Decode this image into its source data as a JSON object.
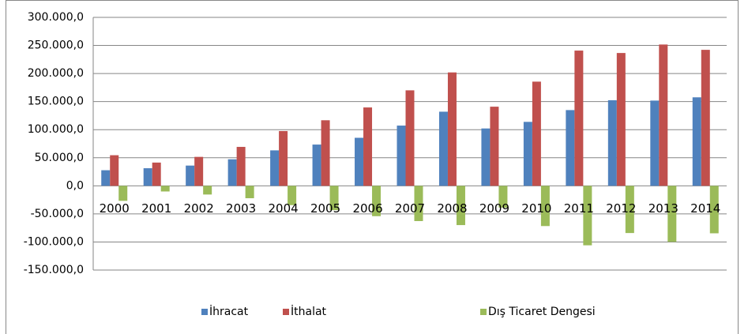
{
  "chart_data": {
    "type": "bar",
    "categories": [
      "2000",
      "2001",
      "2002",
      "2003",
      "2004",
      "2005",
      "2006",
      "2007",
      "2008",
      "2009",
      "2010",
      "2011",
      "2012",
      "2013",
      "2014"
    ],
    "series": [
      {
        "name": "İhracat",
        "color": "#4f81bd",
        "values": [
          27775,
          31334,
          36059,
          47253,
          63167,
          73476,
          85535,
          107272,
          132027,
          102143,
          113883,
          134907,
          152462,
          151803,
          157610
        ]
      },
      {
        "name": "İthalat",
        "color": "#c0504d",
        "values": [
          54503,
          41399,
          51554,
          69340,
          97540,
          116774,
          139576,
          170063,
          201964,
          140928,
          185544,
          240842,
          236545,
          251661,
          242177
        ]
      },
      {
        "name": "Dış Ticaret Dengesi",
        "color": "#9bbb59",
        "values": [
          -26728,
          -10065,
          -15495,
          -22087,
          -34373,
          -43298,
          -54041,
          -62791,
          -69936,
          -38786,
          -71661,
          -105935,
          -84083,
          -99858,
          -84567
        ]
      }
    ],
    "ylim": [
      -150000,
      300000
    ],
    "yticks": [
      {
        "value": -150000,
        "label": "-150.000,0"
      },
      {
        "value": -100000,
        "label": "-100.000,0"
      },
      {
        "value": -50000,
        "label": "-50.000,0"
      },
      {
        "value": 0,
        "label": "0,0"
      },
      {
        "value": 50000,
        "label": "50.000,0"
      },
      {
        "value": 100000,
        "label": "100.000,0"
      },
      {
        "value": 150000,
        "label": "150.000,0"
      },
      {
        "value": 200000,
        "label": "200.000,0"
      },
      {
        "value": 250000,
        "label": "250.000,0"
      },
      {
        "value": 300000,
        "label": "300.000,0"
      }
    ],
    "grid": true,
    "legend": "bottom"
  }
}
